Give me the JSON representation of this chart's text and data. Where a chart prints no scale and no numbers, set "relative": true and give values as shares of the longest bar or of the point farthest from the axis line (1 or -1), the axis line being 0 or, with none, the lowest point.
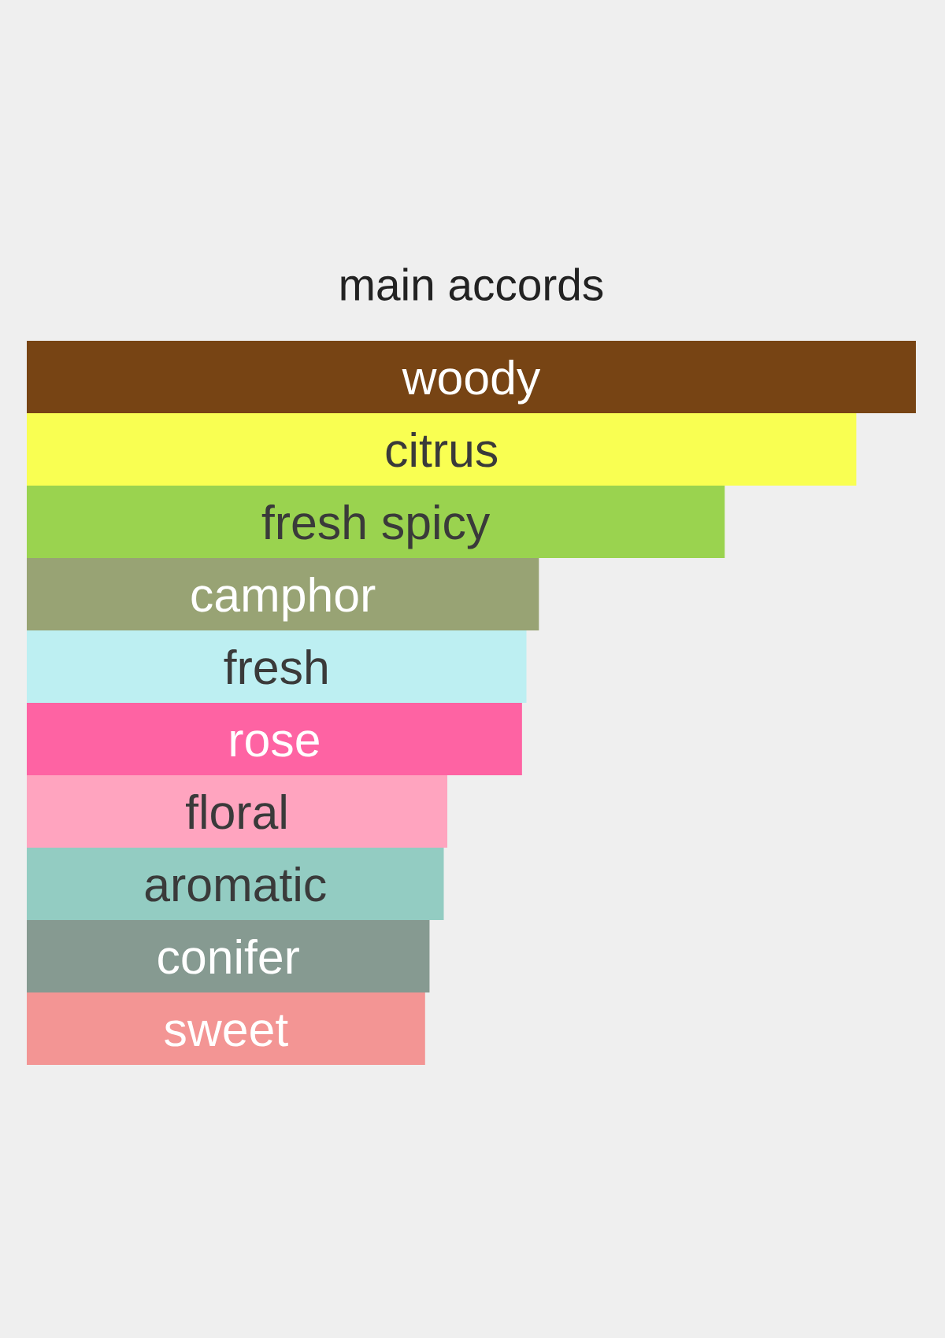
{
  "chart_data": {
    "type": "bar",
    "orientation": "horizontal",
    "relative": true,
    "title": "main accords",
    "categories": [
      "woody",
      "citrus",
      "fresh spicy",
      "camphor",
      "fresh",
      "rose",
      "floral",
      "aromatic",
      "conifer",
      "sweet"
    ],
    "values": [
      1,
      0.933,
      0.785,
      0.576,
      0.562,
      0.557,
      0.473,
      0.469,
      0.453,
      0.448
    ],
    "colors": [
      "#774414",
      "#f9ff52",
      "#9ad34f",
      "#98a374",
      "#bdeff2",
      "#fe63a3",
      "#ffa4bf",
      "#93ccc2",
      "#869a91",
      "#f39594"
    ]
  }
}
